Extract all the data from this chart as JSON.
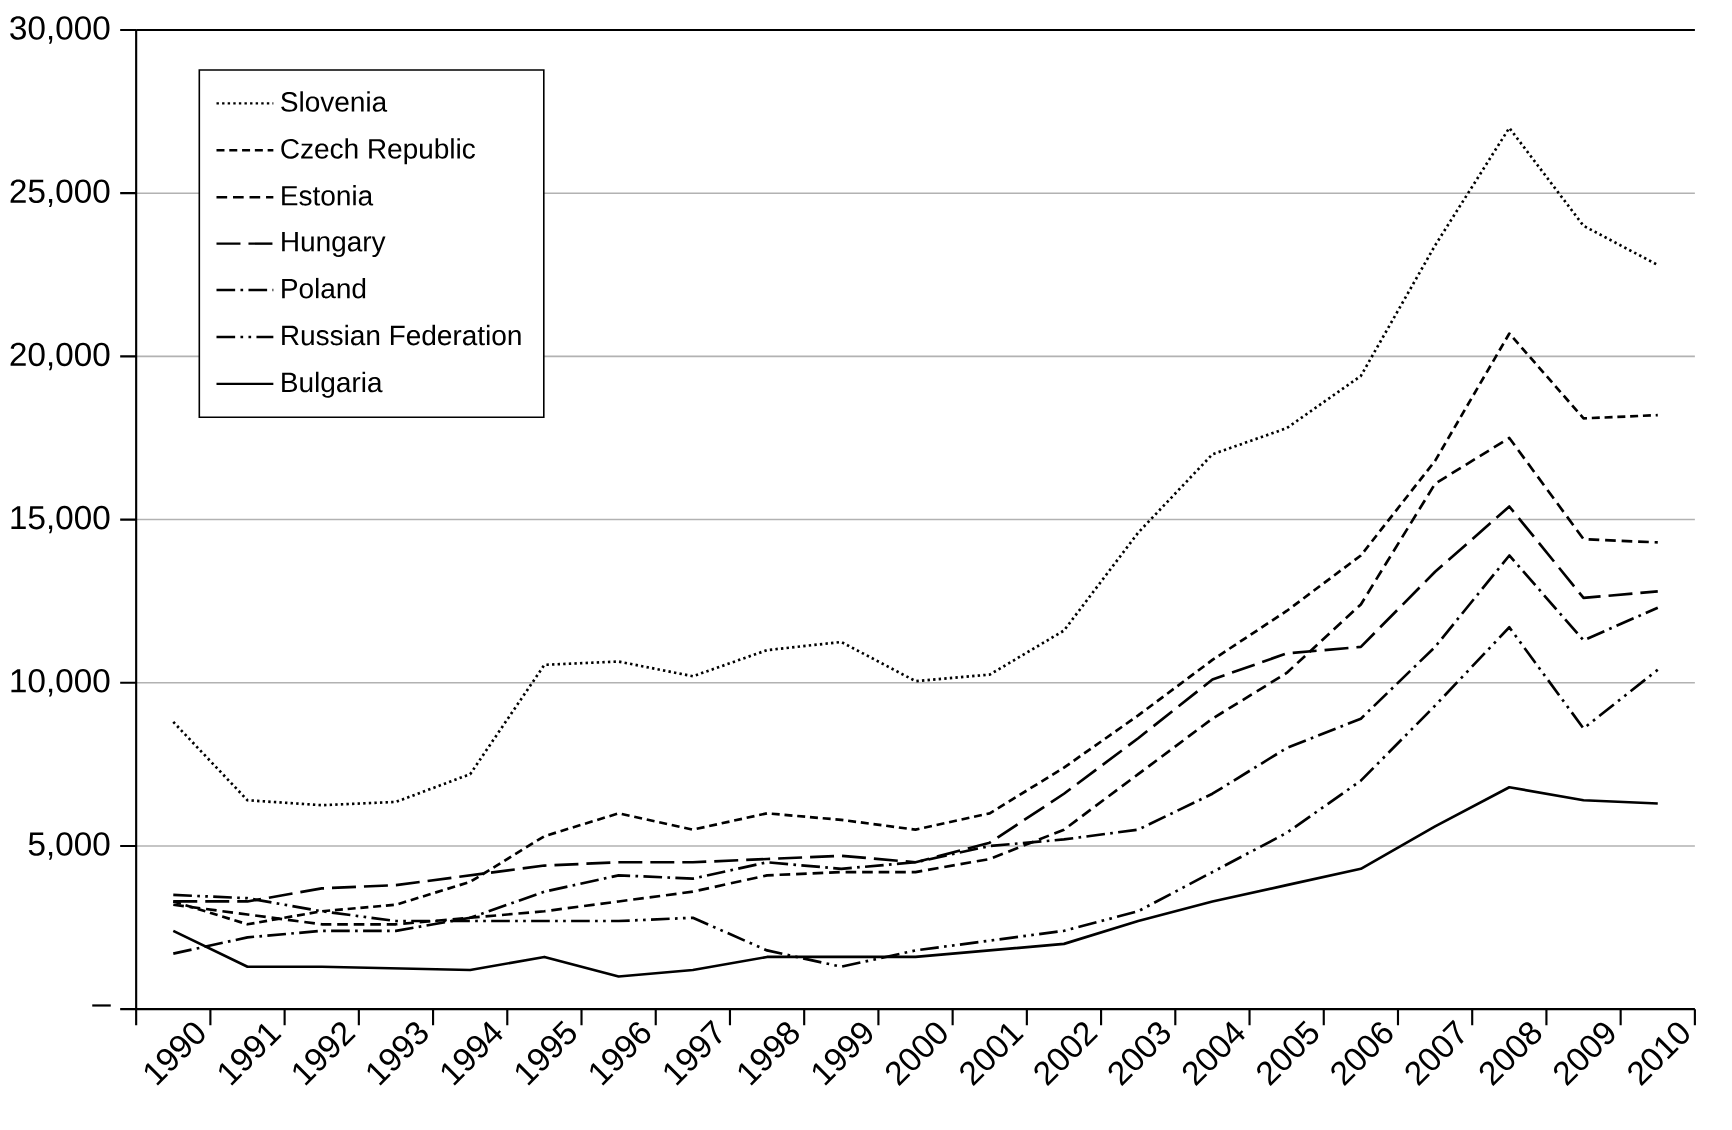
{
  "chart_data": {
    "type": "line",
    "categories": [
      "1990",
      "1991",
      "1992",
      "1993",
      "1994",
      "1995",
      "1996",
      "1997",
      "1998",
      "1999",
      "2000",
      "2001",
      "2002",
      "2003",
      "2004",
      "2005",
      "2006",
      "2007",
      "2008",
      "2009",
      "2010"
    ],
    "series": [
      {
        "name": "Slovenia",
        "color": "#000000",
        "line_style": "dotted",
        "values": [
          8800,
          6400,
          6250,
          6350,
          7200,
          10550,
          10650,
          10200,
          11000,
          11250,
          10050,
          10250,
          11600,
          14600,
          17000,
          17800,
          19400,
          23400,
          27000,
          24000,
          22800
        ]
      },
      {
        "name": "Czech Republic",
        "color": "#000000",
        "line_style": "short dashed",
        "values": [
          3300,
          2600,
          3000,
          3200,
          3900,
          5300,
          6000,
          5500,
          6000,
          5800,
          5500,
          6000,
          7400,
          9000,
          10700,
          12200,
          13900,
          16800,
          20700,
          18100,
          18200
        ]
      },
      {
        "name": "Estonia",
        "color": "#000000",
        "line_style": "dashed",
        "values": [
          3200,
          2900,
          2600,
          2600,
          2800,
          3000,
          3300,
          3600,
          4100,
          4200,
          4200,
          4600,
          5500,
          7200,
          8900,
          10300,
          12400,
          16100,
          17500,
          14400,
          14300
        ]
      },
      {
        "name": "Hungary",
        "color": "#000000",
        "line_style": "long dashed",
        "values": [
          3300,
          3300,
          3700,
          3800,
          4100,
          4400,
          4500,
          4500,
          4600,
          4700,
          4500,
          5100,
          6600,
          8300,
          10100,
          10900,
          11100,
          13400,
          15400,
          12600,
          12800
        ]
      },
      {
        "name": "Poland",
        "color": "#000000",
        "line_style": "dash dot",
        "values": [
          1700,
          2200,
          2400,
          2400,
          2800,
          3600,
          4100,
          4000,
          4500,
          4300,
          4500,
          5000,
          5200,
          5500,
          6600,
          8000,
          8900,
          11100,
          13900,
          11300,
          12300
        ]
      },
      {
        "name": "Russian Federation",
        "color": "#000000",
        "line_style": "dash dot dot",
        "values": [
          3500,
          3400,
          3000,
          2700,
          2700,
          2700,
          2700,
          2800,
          1800,
          1300,
          1800,
          2100,
          2400,
          3000,
          4200,
          5400,
          7000,
          9300,
          11700,
          8600,
          10400
        ]
      },
      {
        "name": "Bulgaria",
        "color": "#000000",
        "line_style": "solid",
        "values": [
          2400,
          1300,
          1300,
          1250,
          1200,
          1600,
          1000,
          1200,
          1600,
          1600,
          1600,
          1800,
          2000,
          2700,
          3300,
          3800,
          4300,
          5600,
          6800,
          6400,
          6300
        ]
      }
    ],
    "ylim": [
      0,
      30000
    ],
    "yticks": [
      {
        "value": 0,
        "label": "–"
      },
      {
        "value": 5000,
        "label": "5,000"
      },
      {
        "value": 10000,
        "label": "10,000"
      },
      {
        "value": 15000,
        "label": "15,000"
      },
      {
        "value": 20000,
        "label": "20,000"
      },
      {
        "value": 25000,
        "label": "25,000"
      },
      {
        "value": 30000,
        "label": "30,000"
      }
    ],
    "grid": "y",
    "legend": "top left",
    "marker": "none"
  }
}
